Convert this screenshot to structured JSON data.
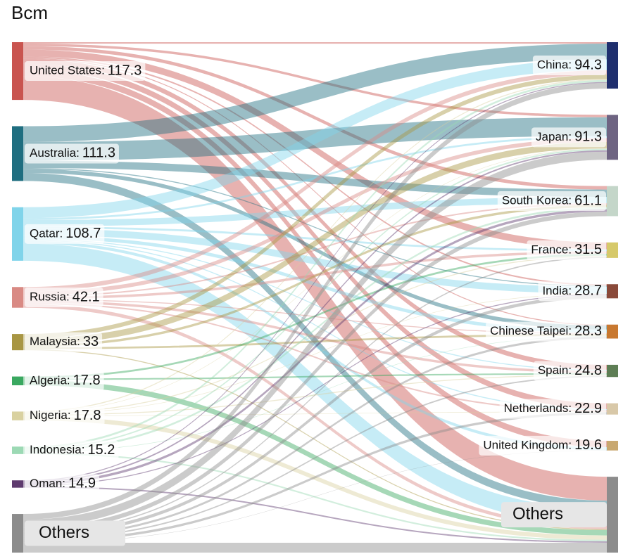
{
  "chart_data": {
    "type": "sankey",
    "title": "Bcm",
    "separator": ":",
    "sources": [
      {
        "name": "United States",
        "value": 117.3,
        "color": "#c9544f"
      },
      {
        "name": "Australia",
        "value": 111.3,
        "color": "#1f6e80"
      },
      {
        "name": "Qatar",
        "value": 108.7,
        "color": "#80d4ea"
      },
      {
        "name": "Russia",
        "value": 42.1,
        "color": "#d98a84"
      },
      {
        "name": "Malaysia",
        "value": 33.0,
        "color": "#a89643"
      },
      {
        "name": "Algeria",
        "value": 17.8,
        "color": "#3aa860"
      },
      {
        "name": "Nigeria",
        "value": 17.8,
        "color": "#d9d1a0"
      },
      {
        "name": "Indonesia",
        "value": 15.2,
        "color": "#9cd9b4"
      },
      {
        "name": "Oman",
        "value": 14.9,
        "color": "#5e3a6e"
      },
      {
        "name": "Others",
        "color": "#8c8c8c"
      }
    ],
    "targets": [
      {
        "name": "China",
        "value": 94.3,
        "color": "#1f2f6e"
      },
      {
        "name": "Japan",
        "value": 91.3,
        "color": "#6e6482"
      },
      {
        "name": "South Korea",
        "value": 61.1,
        "color": "#c4d6c9"
      },
      {
        "name": "France",
        "value": 31.5,
        "color": "#d6c96a"
      },
      {
        "name": "India",
        "value": 28.7,
        "color": "#8a4a3a"
      },
      {
        "name": "Chinese Taipei",
        "value": 28.3,
        "color": "#c87830"
      },
      {
        "name": "Spain",
        "value": 24.8,
        "color": "#5e7e55"
      },
      {
        "name": "Netherlands",
        "value": 22.9,
        "color": "#d8c8a8"
      },
      {
        "name": "United Kingdom",
        "value": 19.6,
        "color": "#c8a870"
      },
      {
        "name": "Others",
        "color": "#8c8c8c"
      }
    ],
    "links": [
      [
        0,
        0,
        3
      ],
      [
        0,
        1,
        5
      ],
      [
        0,
        2,
        7
      ],
      [
        0,
        3,
        14
      ],
      [
        0,
        4,
        3
      ],
      [
        0,
        5,
        2
      ],
      [
        0,
        6,
        10
      ],
      [
        0,
        7,
        12
      ],
      [
        0,
        8,
        13
      ],
      [
        0,
        9,
        48.3
      ],
      [
        1,
        0,
        32
      ],
      [
        1,
        1,
        38
      ],
      [
        1,
        2,
        15
      ],
      [
        1,
        4,
        2
      ],
      [
        1,
        5,
        8
      ],
      [
        1,
        9,
        16.3
      ],
      [
        2,
        0,
        22
      ],
      [
        2,
        1,
        4
      ],
      [
        2,
        2,
        13
      ],
      [
        2,
        3,
        4
      ],
      [
        2,
        4,
        14
      ],
      [
        2,
        5,
        7
      ],
      [
        2,
        6,
        2
      ],
      [
        2,
        7,
        2
      ],
      [
        2,
        8,
        6
      ],
      [
        2,
        9,
        34.7
      ],
      [
        3,
        0,
        9
      ],
      [
        3,
        1,
        8
      ],
      [
        3,
        2,
        3
      ],
      [
        3,
        3,
        5
      ],
      [
        3,
        5,
        2
      ],
      [
        3,
        6,
        5
      ],
      [
        3,
        7,
        3
      ],
      [
        3,
        9,
        7.1
      ],
      [
        4,
        0,
        9
      ],
      [
        4,
        1,
        13
      ],
      [
        4,
        2,
        5
      ],
      [
        4,
        5,
        4
      ],
      [
        4,
        9,
        2.0
      ],
      [
        5,
        3,
        4
      ],
      [
        5,
        6,
        3
      ],
      [
        5,
        9,
        10.8
      ],
      [
        6,
        0,
        2
      ],
      [
        6,
        1,
        1
      ],
      [
        6,
        3,
        2
      ],
      [
        6,
        4,
        1
      ],
      [
        6,
        6,
        2
      ],
      [
        6,
        7,
        1
      ],
      [
        6,
        9,
        8.8
      ],
      [
        7,
        0,
        4
      ],
      [
        7,
        1,
        3
      ],
      [
        7,
        2,
        4
      ],
      [
        7,
        5,
        1
      ],
      [
        7,
        9,
        3.2
      ],
      [
        8,
        0,
        2
      ],
      [
        8,
        1,
        3
      ],
      [
        8,
        2,
        5
      ],
      [
        8,
        4,
        2
      ],
      [
        8,
        9,
        2.9
      ],
      [
        9,
        0,
        11.3
      ],
      [
        9,
        1,
        16.3
      ],
      [
        9,
        2,
        9.1
      ],
      [
        9,
        3,
        2.5
      ],
      [
        9,
        4,
        6.7
      ],
      [
        9,
        5,
        4.3
      ],
      [
        9,
        6,
        2.8
      ],
      [
        9,
        7,
        4.9
      ],
      [
        9,
        8,
        0.6
      ],
      [
        9,
        9,
        20
      ]
    ]
  }
}
